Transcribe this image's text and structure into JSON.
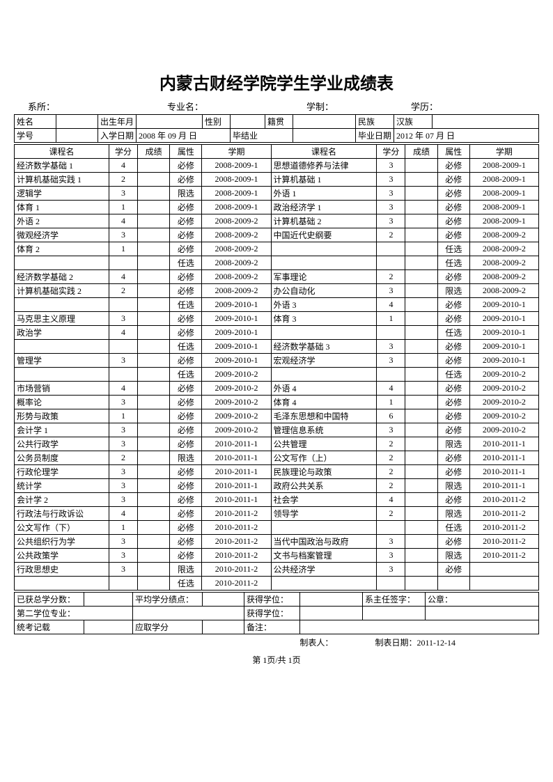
{
  "title": "内蒙古财经学院学生学业成绩表",
  "header": {
    "dept_label": "系所：",
    "major_label": "专业名：",
    "schooling_label": "学制：",
    "degree_label": "学历："
  },
  "info": {
    "name_label": "姓名",
    "birth_label": "出生年月",
    "gender_label": "性别",
    "origin_label": "籍贯",
    "ethnic_label": "民族",
    "ethnic_value": "汉族",
    "sid_label": "学号",
    "enroll_label": "入学日期",
    "enroll_value": "2008 年 09 月 日",
    "grad_label": "毕结业",
    "grad_date_label": "毕业日期",
    "grad_date_value": "2012 年 07 月  日"
  },
  "course_header": {
    "name": "课程名",
    "credit": "学分",
    "grade": "成绩",
    "attr": "属性",
    "term": "学期"
  },
  "left_courses": [
    {
      "name": "经济数学基础 1",
      "credit": "4",
      "grade": "",
      "attr": "必修",
      "term": "2008-2009-1"
    },
    {
      "name": "计算机基础实践 1",
      "credit": "2",
      "grade": "",
      "attr": "必修",
      "term": "2008-2009-1"
    },
    {
      "name": "逻辑学",
      "credit": "3",
      "grade": "",
      "attr": "限选",
      "term": "2008-2009-1"
    },
    {
      "name": "体育 1",
      "credit": "1",
      "grade": "",
      "attr": "必修",
      "term": "2008-2009-1"
    },
    {
      "name": "外语 2",
      "credit": "4",
      "grade": "",
      "attr": "必修",
      "term": "2008-2009-2"
    },
    {
      "name": "微观经济学",
      "credit": "3",
      "grade": "",
      "attr": "必修",
      "term": "2008-2009-2"
    },
    {
      "name": "体育 2",
      "credit": "1",
      "grade": "",
      "attr": "必修",
      "term": "2008-2009-2"
    },
    {
      "name": "",
      "credit": "",
      "grade": "",
      "attr": "任选",
      "term": "2008-2009-2"
    },
    {
      "name": "经济数学基础 2",
      "credit": "4",
      "grade": "",
      "attr": "必修",
      "term": "2008-2009-2"
    },
    {
      "name": "计算机基础实践 2",
      "credit": "2",
      "grade": "",
      "attr": "必修",
      "term": "2008-2009-2"
    },
    {
      "name": "",
      "credit": "",
      "grade": "",
      "attr": "任选",
      "term": "2009-2010-1"
    },
    {
      "name": "马克思主义原理",
      "credit": "3",
      "grade": "",
      "attr": "必修",
      "term": "2009-2010-1"
    },
    {
      "name": "政治学",
      "credit": "4",
      "grade": "",
      "attr": "必修",
      "term": "2009-2010-1"
    },
    {
      "name": "",
      "credit": "",
      "grade": "",
      "attr": "任选",
      "term": "2009-2010-1"
    },
    {
      "name": "管理学",
      "credit": "3",
      "grade": "",
      "attr": "必修",
      "term": "2009-2010-1"
    },
    {
      "name": "",
      "credit": "",
      "grade": "",
      "attr": "任选",
      "term": "2009-2010-2"
    },
    {
      "name": "市场营销",
      "credit": "4",
      "grade": "",
      "attr": "必修",
      "term": "2009-2010-2"
    },
    {
      "name": "概率论",
      "credit": "3",
      "grade": "",
      "attr": "必修",
      "term": "2009-2010-2"
    },
    {
      "name": "形势与政策",
      "credit": "1",
      "grade": "",
      "attr": "必修",
      "term": "2009-2010-2"
    },
    {
      "name": "会计学 1",
      "credit": "3",
      "grade": "",
      "attr": "必修",
      "term": "2009-2010-2"
    },
    {
      "name": "公共行政学",
      "credit": "3",
      "grade": "",
      "attr": "必修",
      "term": "2010-2011-1"
    },
    {
      "name": "公务员制度",
      "credit": "2",
      "grade": "",
      "attr": "限选",
      "term": "2010-2011-1"
    },
    {
      "name": "行政伦理学",
      "credit": "3",
      "grade": "",
      "attr": "必修",
      "term": "2010-2011-1"
    },
    {
      "name": "统计学",
      "credit": "3",
      "grade": "",
      "attr": "必修",
      "term": "2010-2011-1"
    },
    {
      "name": "会计学 2",
      "credit": "3",
      "grade": "",
      "attr": "必修",
      "term": "2010-2011-1"
    },
    {
      "name": "行政法与行政诉讼",
      "credit": "4",
      "grade": "",
      "attr": "必修",
      "term": "2010-2011-2"
    },
    {
      "name": "公文写作（下）",
      "credit": "1",
      "grade": "",
      "attr": "必修",
      "term": "2010-2011-2"
    },
    {
      "name": "公共组织行为学",
      "credit": "3",
      "grade": "",
      "attr": "必修",
      "term": "2010-2011-2"
    },
    {
      "name": "公共政策学",
      "credit": "3",
      "grade": "",
      "attr": "必修",
      "term": "2010-2011-2"
    },
    {
      "name": "行政思想史",
      "credit": "3",
      "grade": "",
      "attr": "限选",
      "term": "2010-2011-2"
    },
    {
      "name": "",
      "credit": "",
      "grade": "",
      "attr": "任选",
      "term": "2010-2011-2"
    }
  ],
  "right_courses": [
    {
      "name": "思想道德修养与法律",
      "credit": "3",
      "grade": "",
      "attr": "必修",
      "term": "2008-2009-1"
    },
    {
      "name": "计算机基础 1",
      "credit": "3",
      "grade": "",
      "attr": "必修",
      "term": "2008-2009-1"
    },
    {
      "name": "外语 1",
      "credit": "3",
      "grade": "",
      "attr": "必修",
      "term": "2008-2009-1"
    },
    {
      "name": "政治经济学 1",
      "credit": "3",
      "grade": "",
      "attr": "必修",
      "term": "2008-2009-1"
    },
    {
      "name": "计算机基础 2",
      "credit": "3",
      "grade": "",
      "attr": "必修",
      "term": "2008-2009-1"
    },
    {
      "name": "中国近代史纲要",
      "credit": "2",
      "grade": "",
      "attr": "必修",
      "term": "2008-2009-2"
    },
    {
      "name": "",
      "credit": "",
      "grade": "",
      "attr": "任选",
      "term": "2008-2009-2"
    },
    {
      "name": "",
      "credit": "",
      "grade": "",
      "attr": "任选",
      "term": "2008-2009-2"
    },
    {
      "name": "军事理论",
      "credit": "2",
      "grade": "",
      "attr": "必修",
      "term": "2008-2009-2"
    },
    {
      "name": "办公自动化",
      "credit": "3",
      "grade": "",
      "attr": "限选",
      "term": "2008-2009-2"
    },
    {
      "name": "外语 3",
      "credit": "4",
      "grade": "",
      "attr": "必修",
      "term": "2009-2010-1"
    },
    {
      "name": "体育 3",
      "credit": "1",
      "grade": "",
      "attr": "必修",
      "term": "2009-2010-1"
    },
    {
      "name": "",
      "credit": "",
      "grade": "",
      "attr": "任选",
      "term": "2009-2010-1"
    },
    {
      "name": "经济数学基础 3",
      "credit": "3",
      "grade": "",
      "attr": "必修",
      "term": "2009-2010-1"
    },
    {
      "name": "宏观经济学",
      "credit": "3",
      "grade": "",
      "attr": "必修",
      "term": "2009-2010-1"
    },
    {
      "name": "",
      "credit": "",
      "grade": "",
      "attr": "任选",
      "term": "2009-2010-2"
    },
    {
      "name": "外语 4",
      "credit": "4",
      "grade": "",
      "attr": "必修",
      "term": "2009-2010-2"
    },
    {
      "name": "体育 4",
      "credit": "1",
      "grade": "",
      "attr": "必修",
      "term": "2009-2010-2"
    },
    {
      "name": "毛泽东思想和中国特",
      "credit": "6",
      "grade": "",
      "attr": "必修",
      "term": "2009-2010-2"
    },
    {
      "name": "管理信息系统",
      "credit": "3",
      "grade": "",
      "attr": "必修",
      "term": "2009-2010-2"
    },
    {
      "name": "公共管理",
      "credit": "2",
      "grade": "",
      "attr": "限选",
      "term": "2010-2011-1"
    },
    {
      "name": "公文写作（上）",
      "credit": "2",
      "grade": "",
      "attr": "必修",
      "term": "2010-2011-1"
    },
    {
      "name": "民族理论与政策",
      "credit": "2",
      "grade": "",
      "attr": "必修",
      "term": "2010-2011-1"
    },
    {
      "name": "政府公共关系",
      "credit": "2",
      "grade": "",
      "attr": "限选",
      "term": "2010-2011-1"
    },
    {
      "name": "社会学",
      "credit": "4",
      "grade": "",
      "attr": "必修",
      "term": "2010-2011-2"
    },
    {
      "name": "领导学",
      "credit": "2",
      "grade": "",
      "attr": "限选",
      "term": "2010-2011-2"
    },
    {
      "name": "",
      "credit": "",
      "grade": "",
      "attr": "任选",
      "term": "2010-2011-2"
    },
    {
      "name": "当代中国政治与政府",
      "credit": "3",
      "grade": "",
      "attr": "必修",
      "term": "2010-2011-2"
    },
    {
      "name": "文书与档案管理",
      "credit": "3",
      "grade": "",
      "attr": "限选",
      "term": "2010-2011-2"
    },
    {
      "name": "公共经济学",
      "credit": "3",
      "grade": "",
      "attr": "必修",
      "term": ""
    },
    {
      "name": "",
      "credit": "",
      "grade": "",
      "attr": "",
      "term": ""
    }
  ],
  "summary": {
    "total_credit_label": "已获总学分数：",
    "avg_gpa_label": "平均学分绩点：",
    "degree1_label": "获得学位：",
    "sign_label": "系主任签字：",
    "seal_label": "公章：",
    "second_degree_label": "第二学位专业：",
    "degree2_label": "获得学位：",
    "exam_record_label": "统考记载",
    "should_credit_label": "应取学分",
    "remark_label": "备注："
  },
  "footer": {
    "maker_label": "制表人：",
    "date_label": "制表日期：2011-12-14",
    "page": "第 1页/共 1页"
  }
}
